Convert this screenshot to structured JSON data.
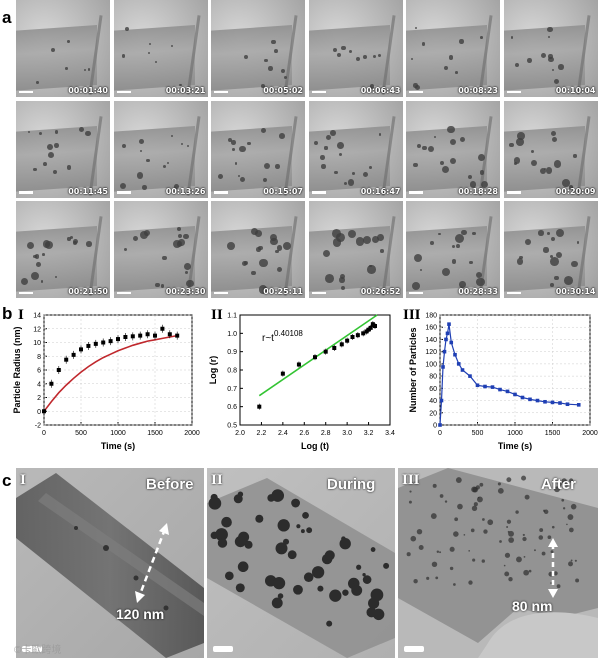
{
  "panel_labels": {
    "a": "a",
    "b": "b",
    "c": "c"
  },
  "panel_a": {
    "timestamps": [
      "00:01:40",
      "00:03:21",
      "00:05:02",
      "00:06:43",
      "00:08:23",
      "00:10:04",
      "00:11:45",
      "00:13:26",
      "00:15:07",
      "00:16:47",
      "00:18:28",
      "00:20:09",
      "00:21:50",
      "00:23:30",
      "00:25:11",
      "00:26:52",
      "00:28:33",
      "00:30:14"
    ]
  },
  "panel_b": {
    "roman": [
      "I",
      "II",
      "III"
    ]
  },
  "chart_data": [
    {
      "type": "scatter",
      "title": "",
      "xlabel": "Time (s)",
      "ylabel": "Particle Radius (nm)",
      "xlim": [
        0,
        2000
      ],
      "ylim": [
        -2,
        14
      ],
      "xticks": [
        "0",
        "500",
        "1000",
        "1500",
        "2000"
      ],
      "yticks": [
        "-2",
        "0",
        "2",
        "4",
        "6",
        "8",
        "10",
        "12",
        "14"
      ],
      "series": [
        {
          "name": "data",
          "x": [
            0,
            100,
            200,
            300,
            400,
            500,
            600,
            700,
            800,
            900,
            1000,
            1100,
            1200,
            1300,
            1400,
            1500,
            1600,
            1700,
            1800
          ],
          "y": [
            0,
            4,
            6,
            7.5,
            8.2,
            9,
            9.5,
            9.8,
            10,
            10.2,
            10.5,
            10.8,
            10.9,
            11,
            11.2,
            11,
            12,
            11.2,
            11
          ]
        },
        {
          "name": "fit",
          "x": [
            0,
            100,
            200,
            300,
            400,
            500,
            600,
            700,
            800,
            900,
            1000,
            1100,
            1200,
            1300,
            1400,
            1500,
            1600,
            1700,
            1800
          ],
          "y": [
            0,
            1.4,
            2.7,
            3.8,
            4.8,
            5.7,
            6.5,
            7.2,
            7.8,
            8.3,
            8.8,
            9.2,
            9.6,
            9.9,
            10.2,
            10.4,
            10.6,
            10.8,
            11
          ]
        }
      ]
    },
    {
      "type": "scatter",
      "title": "",
      "annotation": "r~t",
      "annotation_exponent": "0.40108",
      "xlabel": "Log (t)",
      "ylabel": "Log (r)",
      "xlim": [
        2.0,
        3.4
      ],
      "ylim": [
        0.5,
        1.1
      ],
      "xticks": [
        "2.0",
        "2.2",
        "2.4",
        "2.6",
        "2.8",
        "3.0",
        "3.2",
        "3.4"
      ],
      "yticks": [
        "0.5",
        "0.6",
        "0.7",
        "0.8",
        "0.9",
        "1.0",
        "1.1"
      ],
      "series": [
        {
          "name": "data",
          "x": [
            2.18,
            2.4,
            2.55,
            2.7,
            2.8,
            2.88,
            2.95,
            3.0,
            3.05,
            3.1,
            3.15,
            3.18,
            3.2,
            3.22,
            3.24,
            3.26
          ],
          "y": [
            0.6,
            0.78,
            0.83,
            0.87,
            0.9,
            0.92,
            0.94,
            0.96,
            0.98,
            0.99,
            1.0,
            1.01,
            1.02,
            1.03,
            1.05,
            1.04
          ]
        },
        {
          "name": "fit",
          "x": [
            2.18,
            3.28
          ],
          "y": [
            0.66,
            1.1
          ]
        }
      ]
    },
    {
      "type": "line",
      "title": "",
      "xlabel": "Time (s)",
      "ylabel": "Number of Particles",
      "xlim": [
        0,
        2000
      ],
      "ylim": [
        0,
        180
      ],
      "xticks": [
        "0",
        "500",
        "1000",
        "1500",
        "2000"
      ],
      "yticks": [
        "0",
        "20",
        "40",
        "60",
        "80",
        "100",
        "120",
        "140",
        "160",
        "180"
      ],
      "series": [
        {
          "name": "particles",
          "x": [
            0,
            20,
            40,
            60,
            80,
            100,
            120,
            150,
            200,
            250,
            300,
            400,
            500,
            600,
            700,
            800,
            900,
            1000,
            1100,
            1200,
            1300,
            1400,
            1500,
            1600,
            1700,
            1850
          ],
          "y": [
            0,
            40,
            95,
            120,
            140,
            150,
            165,
            135,
            115,
            100,
            90,
            80,
            65,
            63,
            62,
            58,
            55,
            50,
            45,
            42,
            40,
            38,
            37,
            36,
            34,
            33
          ]
        }
      ]
    }
  ],
  "panel_c": {
    "roman": [
      "I",
      "II",
      "III"
    ],
    "titles": [
      "Before",
      "During",
      "After"
    ],
    "measure_before": "120 nm",
    "measure_after": "80 nm",
    "watermark": "©卡歐跨境"
  }
}
